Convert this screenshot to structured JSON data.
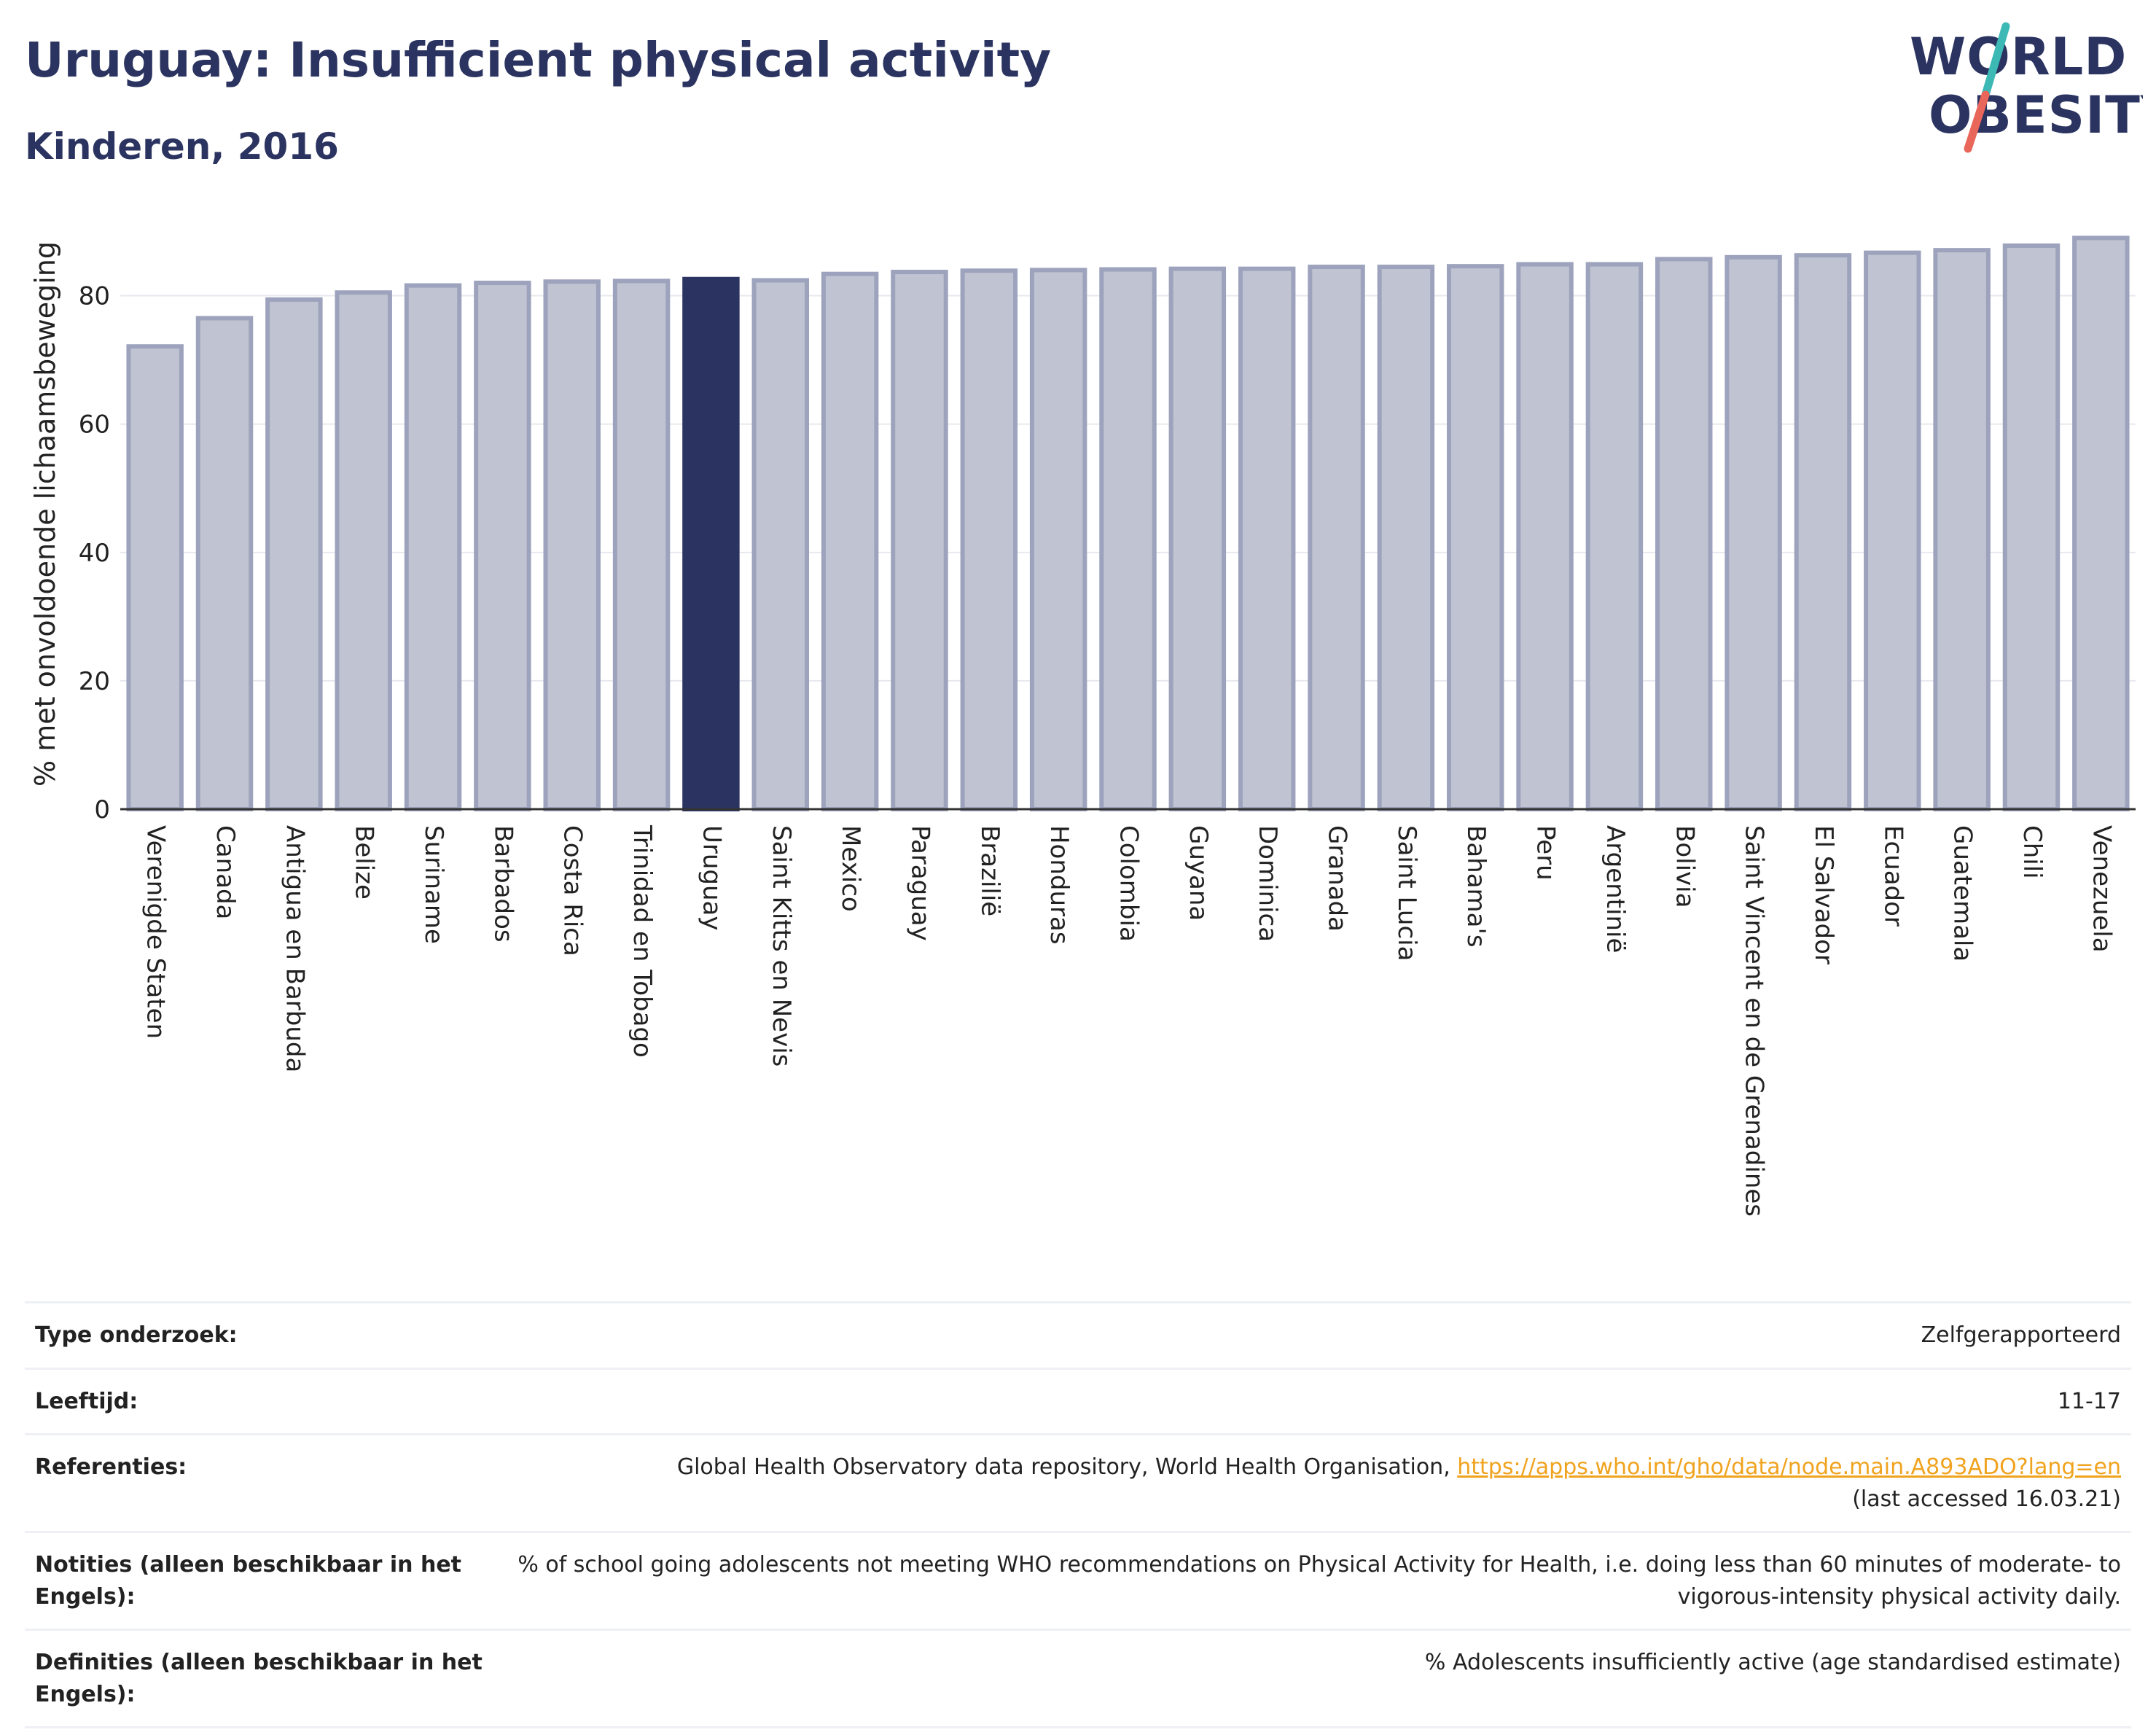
{
  "header": {
    "title": "Uruguay: Insufficient physical activity",
    "subtitle": "Kinderen, 2016"
  },
  "logo": {
    "line1": "WORLD",
    "line2": "OBESITY",
    "accent_colors": [
      "#e8675a",
      "#3cb8b5"
    ]
  },
  "chart_data": {
    "type": "bar",
    "ylabel": "% met onvoldoende lichaamsbeweging",
    "xlabel": "",
    "ylim": [
      0,
      92
    ],
    "yticks": [
      0,
      20,
      40,
      60,
      80
    ],
    "grid": true,
    "highlight": "Uruguay",
    "colors": {
      "bar": "#c0c3d1",
      "bar_edge": "#9ea3bd",
      "highlight": "#2b3460"
    },
    "categories": [
      "Verenigde Staten",
      "Canada",
      "Antigua en Barbuda",
      "Belize",
      "Suriname",
      "Barbados",
      "Costa Rica",
      "Trinidad en Tobago",
      "Uruguay",
      "Saint Kitts en Nevis",
      "Mexico",
      "Paraguay",
      "Brazilië",
      "Honduras",
      "Colombia",
      "Guyana",
      "Dominica",
      "Granada",
      "Saint Lucia",
      "Bahama's",
      "Peru",
      "Argentinië",
      "Bolivia",
      "Saint Vincent en de Grenadines",
      "El Salvador",
      "Ecuador",
      "Guatemala",
      "Chili",
      "Venezuela"
    ],
    "values": [
      72.1,
      76.5,
      79.4,
      80.5,
      81.6,
      82.0,
      82.2,
      82.3,
      82.6,
      82.4,
      83.4,
      83.7,
      83.9,
      84.0,
      84.1,
      84.2,
      84.2,
      84.5,
      84.5,
      84.6,
      84.9,
      84.9,
      85.7,
      86.0,
      86.3,
      86.7,
      87.1,
      87.8,
      89.0
    ]
  },
  "table": [
    {
      "key": "Type onderzoek:",
      "value": "Zelfgerapporteerd"
    },
    {
      "key": "Leeftijd:",
      "value": "11-17"
    },
    {
      "key": "Referenties:",
      "value_prefix": "Global Health Observatory data repository, World Health Organisation, ",
      "link": "https://apps.who.int/gho/data/node.main.A893ADO?lang=en",
      "value_suffix": "(last accessed 16.03.21)"
    },
    {
      "key": "Notities (alleen beschikbaar in het Engels):",
      "value": "% of school going adolescents not meeting WHO recommendations on Physical Activity for Health, i.e. doing less than 60 minutes of moderate- to vigorous-intensity physical activity daily."
    },
    {
      "key": "Definities (alleen beschikbaar in het Engels):",
      "value": "% Adolescents insufficiently active (age standardised estimate)"
    }
  ]
}
